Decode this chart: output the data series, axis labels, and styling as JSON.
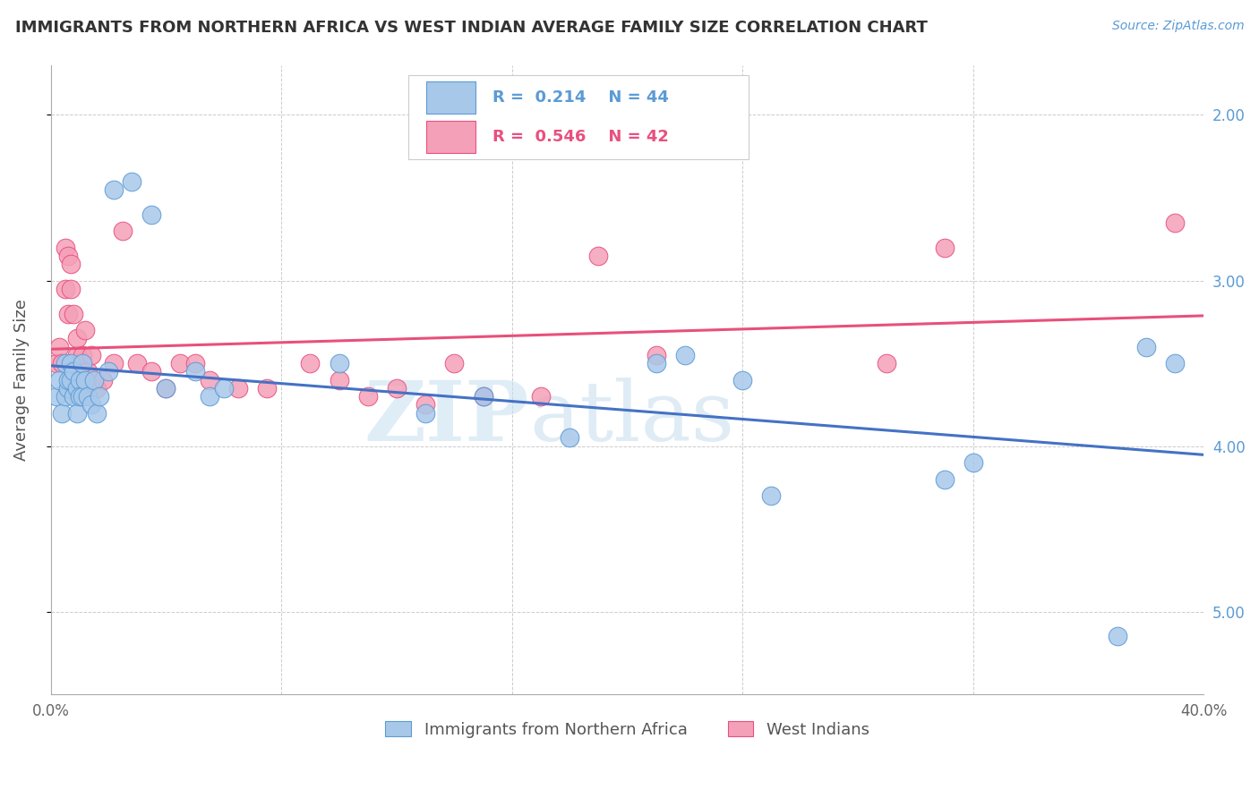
{
  "title": "IMMIGRANTS FROM NORTHERN AFRICA VS WEST INDIAN AVERAGE FAMILY SIZE CORRELATION CHART",
  "source": "Source: ZipAtlas.com",
  "ylabel": "Average Family Size",
  "xlim": [
    0.0,
    0.4
  ],
  "ylim": [
    1.5,
    5.3
  ],
  "yticks": [
    2.0,
    3.0,
    4.0,
    5.0
  ],
  "xticks": [
    0.0,
    0.08,
    0.16,
    0.24,
    0.32,
    0.4
  ],
  "xticklabels": [
    "0.0%",
    "",
    "",
    "",
    "",
    "40.0%"
  ],
  "yticklabels_right": [
    "5.00",
    "4.00",
    "3.00",
    "2.00"
  ],
  "watermark_zip": "ZIP",
  "watermark_atlas": "atlas",
  "legend_label1": "Immigrants from Northern Africa",
  "legend_label2": "West Indians",
  "blue_color": "#5b9bd5",
  "pink_color": "#e85080",
  "blue_scatter_fill": "#a8c8ea",
  "pink_scatter_fill": "#f4a0b8",
  "line_blue": "#4472c4",
  "line_pink": "#e8507a",
  "R_blue": 0.214,
  "N_blue": 44,
  "R_pink": 0.546,
  "N_pink": 42,
  "blue_x": [
    0.002,
    0.003,
    0.004,
    0.005,
    0.005,
    0.006,
    0.006,
    0.007,
    0.007,
    0.008,
    0.008,
    0.009,
    0.009,
    0.01,
    0.01,
    0.011,
    0.011,
    0.012,
    0.013,
    0.014,
    0.015,
    0.016,
    0.017,
    0.02,
    0.022,
    0.028,
    0.035,
    0.04,
    0.05,
    0.055,
    0.06,
    0.1,
    0.13,
    0.15,
    0.18,
    0.21,
    0.22,
    0.24,
    0.25,
    0.31,
    0.32,
    0.37,
    0.38,
    0.39
  ],
  "blue_y": [
    3.3,
    3.4,
    3.2,
    3.5,
    3.3,
    3.35,
    3.4,
    3.4,
    3.5,
    3.3,
    3.45,
    3.35,
    3.2,
    3.4,
    3.3,
    3.5,
    3.3,
    3.4,
    3.3,
    3.25,
    3.4,
    3.2,
    3.3,
    3.45,
    4.55,
    4.6,
    4.4,
    3.35,
    3.45,
    3.3,
    3.35,
    3.5,
    3.2,
    3.3,
    3.05,
    3.5,
    3.55,
    3.4,
    2.7,
    2.8,
    2.9,
    1.85,
    3.6,
    3.5
  ],
  "pink_x": [
    0.002,
    0.003,
    0.004,
    0.005,
    0.005,
    0.006,
    0.006,
    0.007,
    0.007,
    0.008,
    0.009,
    0.009,
    0.01,
    0.011,
    0.012,
    0.013,
    0.014,
    0.016,
    0.018,
    0.022,
    0.025,
    0.03,
    0.035,
    0.04,
    0.045,
    0.05,
    0.055,
    0.065,
    0.075,
    0.09,
    0.1,
    0.11,
    0.12,
    0.13,
    0.14,
    0.15,
    0.17,
    0.19,
    0.21,
    0.29,
    0.31,
    0.39
  ],
  "pink_y": [
    3.5,
    3.6,
    3.5,
    4.2,
    3.95,
    3.8,
    4.15,
    3.95,
    4.1,
    3.8,
    3.55,
    3.65,
    3.5,
    3.55,
    3.7,
    3.45,
    3.55,
    3.35,
    3.4,
    3.5,
    4.3,
    3.5,
    3.45,
    3.35,
    3.5,
    3.5,
    3.4,
    3.35,
    3.35,
    3.5,
    3.4,
    3.3,
    3.35,
    3.25,
    3.5,
    3.3,
    3.3,
    4.15,
    3.55,
    3.5,
    4.2,
    4.35
  ],
  "background_color": "#ffffff",
  "grid_color": "#cccccc"
}
